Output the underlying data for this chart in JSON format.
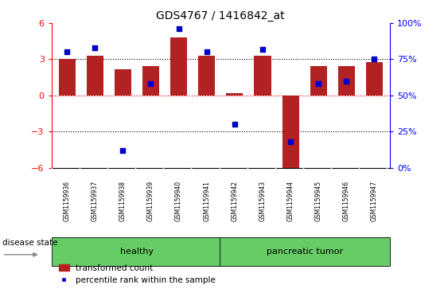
{
  "title": "GDS4767 / 1416842_at",
  "samples": [
    "GSM1159936",
    "GSM1159937",
    "GSM1159938",
    "GSM1159939",
    "GSM1159940",
    "GSM1159941",
    "GSM1159942",
    "GSM1159943",
    "GSM1159944",
    "GSM1159945",
    "GSM1159946",
    "GSM1159947"
  ],
  "transformed_count": [
    3.05,
    3.3,
    2.2,
    2.45,
    4.8,
    3.3,
    0.2,
    3.3,
    -6.0,
    2.45,
    2.45,
    2.75
  ],
  "percentile_rank": [
    80,
    83,
    12,
    58,
    96,
    80,
    30,
    82,
    18,
    58,
    60,
    75
  ],
  "groups": {
    "healthy": [
      0,
      1,
      2,
      3,
      4,
      5
    ],
    "pancreatic tumor": [
      6,
      7,
      8,
      9,
      10,
      11
    ]
  },
  "bar_color": "#B22222",
  "dot_color": "#0000CC",
  "ylim": [
    -6,
    6
  ],
  "right_ylim": [
    0,
    100
  ],
  "right_yticks": [
    0,
    25,
    50,
    75,
    100
  ],
  "right_yticklabels": [
    "0%",
    "25%",
    "50%",
    "75%",
    "100%"
  ],
  "yticks": [
    -6,
    -3,
    0,
    3,
    6
  ],
  "background_color": "#ffffff",
  "label_bg_color": "#d3d3d3",
  "group_color": "#66CC66",
  "disease_state_label": "disease state",
  "legend_items": [
    "transformed count",
    "percentile rank within the sample"
  ]
}
